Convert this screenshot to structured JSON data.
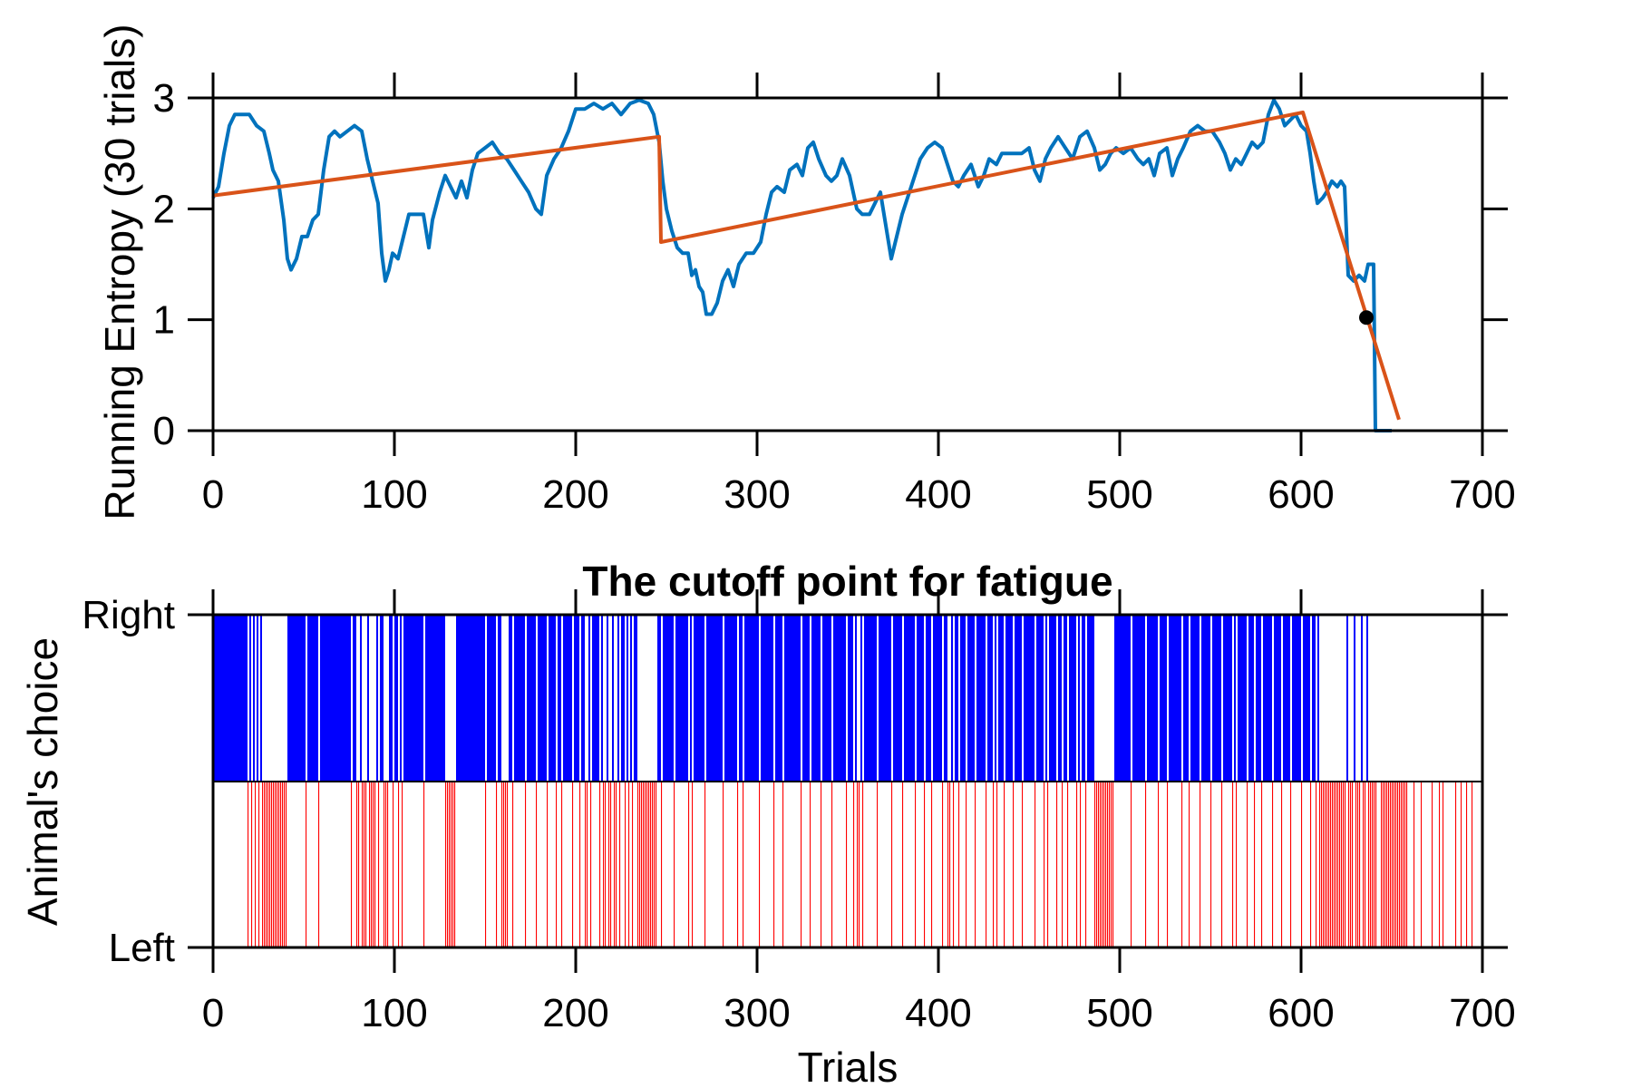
{
  "chart_data": [
    {
      "type": "line",
      "ylabel": "Running Entropy (30 trials)",
      "xlim": [
        0,
        700
      ],
      "ylim": [
        0,
        3
      ],
      "xticks": [
        0,
        100,
        200,
        300,
        400,
        500,
        600,
        700
      ],
      "yticks": [
        0,
        1,
        2,
        3
      ],
      "grid": false,
      "colors": {
        "entropy": "#0072BD",
        "fit": "#D95319",
        "cutoff_marker": "#000000"
      },
      "series": [
        {
          "values": [
            [
              0,
              2.1
            ],
            [
              3,
              2.2
            ],
            [
              6,
              2.5
            ],
            [
              9,
              2.75
            ],
            [
              12,
              2.85
            ],
            [
              15,
              2.85
            ],
            [
              20,
              2.85
            ],
            [
              24,
              2.75
            ],
            [
              28,
              2.7
            ],
            [
              31,
              2.5
            ],
            [
              33,
              2.35
            ],
            [
              36,
              2.25
            ],
            [
              39,
              1.9
            ],
            [
              41,
              1.55
            ],
            [
              43,
              1.45
            ],
            [
              46,
              1.55
            ],
            [
              49,
              1.75
            ],
            [
              52,
              1.75
            ],
            [
              55,
              1.9
            ],
            [
              58,
              1.95
            ],
            [
              61,
              2.35
            ],
            [
              64,
              2.65
            ],
            [
              67,
              2.7
            ],
            [
              70,
              2.65
            ],
            [
              74,
              2.7
            ],
            [
              78,
              2.75
            ],
            [
              82,
              2.7
            ],
            [
              85,
              2.45
            ],
            [
              88,
              2.25
            ],
            [
              91,
              2.05
            ],
            [
              93,
              1.6
            ],
            [
              95,
              1.35
            ],
            [
              97,
              1.45
            ],
            [
              99,
              1.6
            ],
            [
              102,
              1.55
            ],
            [
              105,
              1.75
            ],
            [
              108,
              1.95
            ],
            [
              112,
              1.95
            ],
            [
              116,
              1.95
            ],
            [
              119,
              1.65
            ],
            [
              121,
              1.9
            ],
            [
              125,
              2.15
            ],
            [
              128,
              2.3
            ],
            [
              131,
              2.2
            ],
            [
              134,
              2.1
            ],
            [
              137,
              2.25
            ],
            [
              140,
              2.1
            ],
            [
              143,
              2.35
            ],
            [
              146,
              2.5
            ],
            [
              150,
              2.55
            ],
            [
              154,
              2.6
            ],
            [
              158,
              2.5
            ],
            [
              162,
              2.45
            ],
            [
              166,
              2.35
            ],
            [
              170,
              2.25
            ],
            [
              174,
              2.15
            ],
            [
              178,
              2.0
            ],
            [
              181,
              1.95
            ],
            [
              184,
              2.3
            ],
            [
              188,
              2.45
            ],
            [
              192,
              2.55
            ],
            [
              196,
              2.7
            ],
            [
              200,
              2.9
            ],
            [
              205,
              2.9
            ],
            [
              210,
              2.95
            ],
            [
              215,
              2.9
            ],
            [
              220,
              2.95
            ],
            [
              225,
              2.85
            ],
            [
              230,
              2.95
            ],
            [
              235,
              2.98
            ],
            [
              240,
              2.95
            ],
            [
              243,
              2.85
            ],
            [
              246,
              2.6
            ],
            [
              248,
              2.25
            ],
            [
              250,
              2.0
            ],
            [
              253,
              1.8
            ],
            [
              256,
              1.65
            ],
            [
              259,
              1.6
            ],
            [
              262,
              1.6
            ],
            [
              264,
              1.4
            ],
            [
              266,
              1.45
            ],
            [
              268,
              1.3
            ],
            [
              270,
              1.25
            ],
            [
              272,
              1.05
            ],
            [
              275,
              1.05
            ],
            [
              278,
              1.15
            ],
            [
              281,
              1.35
            ],
            [
              284,
              1.45
            ],
            [
              287,
              1.3
            ],
            [
              290,
              1.5
            ],
            [
              294,
              1.6
            ],
            [
              298,
              1.6
            ],
            [
              302,
              1.7
            ],
            [
              305,
              1.95
            ],
            [
              308,
              2.15
            ],
            [
              311,
              2.2
            ],
            [
              315,
              2.15
            ],
            [
              318,
              2.35
            ],
            [
              322,
              2.4
            ],
            [
              325,
              2.3
            ],
            [
              328,
              2.55
            ],
            [
              331,
              2.6
            ],
            [
              334,
              2.45
            ],
            [
              338,
              2.3
            ],
            [
              341,
              2.25
            ],
            [
              344,
              2.3
            ],
            [
              347,
              2.45
            ],
            [
              351,
              2.3
            ],
            [
              355,
              2.0
            ],
            [
              358,
              1.95
            ],
            [
              362,
              1.95
            ],
            [
              365,
              2.05
            ],
            [
              368,
              2.15
            ],
            [
              371,
              1.85
            ],
            [
              374,
              1.55
            ],
            [
              377,
              1.75
            ],
            [
              380,
              1.95
            ],
            [
              384,
              2.15
            ],
            [
              387,
              2.3
            ],
            [
              390,
              2.45
            ],
            [
              394,
              2.55
            ],
            [
              398,
              2.6
            ],
            [
              402,
              2.55
            ],
            [
              405,
              2.4
            ],
            [
              408,
              2.25
            ],
            [
              411,
              2.2
            ],
            [
              414,
              2.3
            ],
            [
              418,
              2.4
            ],
            [
              422,
              2.2
            ],
            [
              425,
              2.3
            ],
            [
              428,
              2.45
            ],
            [
              432,
              2.4
            ],
            [
              435,
              2.5
            ],
            [
              440,
              2.5
            ],
            [
              446,
              2.5
            ],
            [
              450,
              2.55
            ],
            [
              453,
              2.35
            ],
            [
              456,
              2.25
            ],
            [
              459,
              2.45
            ],
            [
              462,
              2.55
            ],
            [
              466,
              2.65
            ],
            [
              470,
              2.55
            ],
            [
              474,
              2.45
            ],
            [
              478,
              2.65
            ],
            [
              482,
              2.7
            ],
            [
              486,
              2.55
            ],
            [
              489,
              2.35
            ],
            [
              492,
              2.4
            ],
            [
              495,
              2.5
            ],
            [
              498,
              2.55
            ],
            [
              502,
              2.5
            ],
            [
              506,
              2.55
            ],
            [
              510,
              2.45
            ],
            [
              513,
              2.4
            ],
            [
              516,
              2.45
            ],
            [
              519,
              2.3
            ],
            [
              522,
              2.5
            ],
            [
              526,
              2.55
            ],
            [
              529,
              2.3
            ],
            [
              532,
              2.45
            ],
            [
              535,
              2.55
            ],
            [
              539,
              2.7
            ],
            [
              543,
              2.75
            ],
            [
              547,
              2.7
            ],
            [
              551,
              2.7
            ],
            [
              555,
              2.6
            ],
            [
              558,
              2.5
            ],
            [
              561,
              2.35
            ],
            [
              564,
              2.45
            ],
            [
              567,
              2.4
            ],
            [
              570,
              2.5
            ],
            [
              573,
              2.6
            ],
            [
              576,
              2.55
            ],
            [
              579,
              2.6
            ],
            [
              582,
              2.85
            ],
            [
              585,
              2.98
            ],
            [
              588,
              2.9
            ],
            [
              591,
              2.75
            ],
            [
              594,
              2.8
            ],
            [
              597,
              2.85
            ],
            [
              600,
              2.75
            ],
            [
              603,
              2.7
            ],
            [
              605,
              2.5
            ],
            [
              607,
              2.25
            ],
            [
              609,
              2.05
            ],
            [
              612,
              2.1
            ],
            [
              614,
              2.15
            ],
            [
              617,
              2.25
            ],
            [
              620,
              2.2
            ],
            [
              622,
              2.25
            ],
            [
              624,
              2.2
            ],
            [
              626,
              1.4
            ],
            [
              629,
              1.35
            ],
            [
              632,
              1.4
            ],
            [
              635,
              1.35
            ],
            [
              637,
              1.5
            ],
            [
              640,
              1.5
            ],
            [
              641,
              0.0
            ],
            [
              645,
              0.0
            ],
            [
              650,
              0.0
            ]
          ]
        },
        {
          "values": [
            [
              0,
              2.12
            ],
            [
              246,
              2.65
            ],
            [
              247,
              1.7
            ],
            [
              601,
              2.87
            ],
            [
              654,
              0.1
            ]
          ]
        }
      ],
      "markers": [
        {
          "x": 636,
          "y": 1.02
        }
      ]
    },
    {
      "type": "bar",
      "title": "The cutoff point for fatigue",
      "xlabel": "Trials",
      "ylabel": "Animal's choice",
      "xlim": [
        0,
        700
      ],
      "xticks": [
        0,
        100,
        200,
        300,
        400,
        500,
        600,
        700
      ],
      "yticks": [
        "Left",
        "Right"
      ],
      "colors": {
        "Right": "#0000FF",
        "Left": "#FF0000"
      },
      "total_trials": 700,
      "left_trials": [
        19,
        21,
        23,
        25,
        27,
        28,
        29,
        30,
        31,
        32,
        33,
        34,
        35,
        36,
        37,
        38,
        39,
        40,
        51,
        58,
        76,
        79,
        80,
        82,
        83,
        84,
        86,
        87,
        88,
        89,
        91,
        94,
        95,
        96,
        99,
        102,
        104,
        116,
        128,
        129,
        130,
        131,
        132,
        133,
        150,
        156,
        159,
        160,
        161,
        162,
        165,
        172,
        178,
        184,
        189,
        192,
        198,
        202,
        205,
        206,
        208,
        213,
        215,
        216,
        218,
        219,
        221,
        222,
        224,
        227,
        229,
        231,
        234,
        235,
        236,
        237,
        238,
        239,
        240,
        241,
        242,
        243,
        244,
        247,
        254,
        262,
        264,
        271,
        281,
        289,
        292,
        301,
        309,
        314,
        324,
        329,
        335,
        341,
        349,
        353,
        355,
        356,
        358,
        366,
        374,
        380,
        387,
        392,
        396,
        402,
        405,
        406,
        408,
        411,
        415,
        420,
        426,
        430,
        432,
        436,
        441,
        446,
        453,
        458,
        460,
        465,
        468,
        471,
        476,
        478,
        481,
        486,
        487,
        488,
        489,
        490,
        491,
        492,
        493,
        494,
        495,
        496,
        506,
        514,
        521,
        526,
        534,
        538,
        544,
        550,
        556,
        562,
        564,
        570,
        574,
        578,
        584,
        589,
        594,
        600,
        605,
        608,
        610,
        611,
        612,
        613,
        614,
        615,
        616,
        617,
        618,
        619,
        620,
        621,
        622,
        623,
        624,
        626,
        627,
        628,
        630,
        631,
        632,
        634,
        635,
        637,
        638,
        639,
        640,
        641,
        644,
        645,
        646,
        647,
        648,
        649,
        650,
        651,
        652,
        653,
        654,
        655,
        656,
        657,
        658,
        662,
        666,
        672,
        676,
        678,
        685,
        688,
        691,
        694
      ]
    }
  ]
}
